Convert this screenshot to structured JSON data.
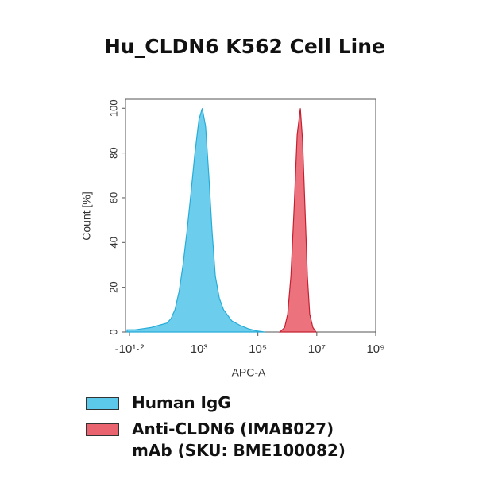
{
  "chart_data": {
    "type": "area",
    "title": "Hu_CLDN6 K562 Cell Line",
    "x_label": "APC-A",
    "y_label": "Count [%]",
    "xscale": "biexponential",
    "xlim": [
      -74,
      1000000000
    ],
    "ylim": [
      0,
      104
    ],
    "xticks": [
      {
        "value": -15.85,
        "label": "-10¹·²"
      },
      {
        "value": 1000,
        "label": "10³"
      },
      {
        "value": 100000,
        "label": "10⁵"
      },
      {
        "value": 10000000,
        "label": "10⁷"
      },
      {
        "value": 1000000000,
        "label": "10⁹"
      }
    ],
    "yticks": [
      0,
      20,
      40,
      60,
      80,
      100
    ],
    "series": [
      {
        "name": "Human IgG",
        "color": "#5cc9ea",
        "edge": "#27acd8",
        "x": [
          -51,
          66,
          182,
          299,
          416,
          533,
          591,
          649,
          708,
          766,
          824,
          883,
          941,
          1000,
          1292,
          1668,
          2154,
          2783,
          3594,
          4942,
          6813,
          12915,
          24484,
          46416,
          87992,
          166810
        ],
        "values": [
          1,
          1,
          1.5,
          2,
          3,
          4,
          6,
          10,
          18,
          30,
          45,
          62,
          80,
          95,
          100,
          92,
          70,
          45,
          25,
          15,
          10,
          5,
          3,
          1.5,
          0.5,
          0
        ]
      },
      {
        "name": "Anti-CLDN6 (IMAB027) mAb (SKU: BME100082)",
        "color": "#ea6470",
        "edge": "#c42030",
        "x": [
          558470,
          807000,
          1031000,
          1318000,
          1686000,
          2154000,
          2754000,
          3311000,
          3981000,
          4786000,
          5754000,
          7360000,
          9397000
        ],
        "values": [
          0,
          2,
          8,
          25,
          55,
          88,
          100,
          85,
          55,
          25,
          8,
          2,
          0
        ]
      }
    ]
  }
}
